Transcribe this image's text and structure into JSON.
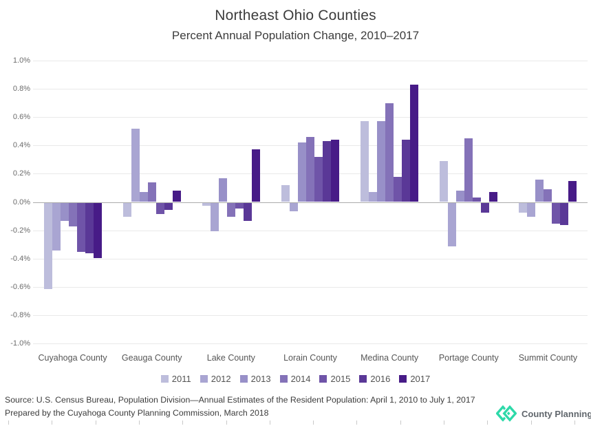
{
  "header": {
    "title": "Northeast Ohio Counties",
    "subtitle": "Percent Annual Population Change, 2010–2017"
  },
  "chart_data": {
    "type": "bar",
    "title": "Northeast Ohio Counties",
    "subtitle": "Percent Annual Population Change, 2010–2017",
    "categories": [
      "Cuyahoga County",
      "Geauga County",
      "Lake County",
      "Lorain County",
      "Medina County",
      "Portage County",
      "Summit County"
    ],
    "series": [
      {
        "name": "2011",
        "color": "#BDBDDC",
        "values": [
          -0.61,
          -0.1,
          -0.02,
          0.12,
          0.57,
          0.29,
          -0.07
        ]
      },
      {
        "name": "2012",
        "color": "#A9A5D2",
        "values": [
          -0.34,
          0.52,
          -0.2,
          -0.06,
          0.07,
          -0.31,
          -0.1
        ]
      },
      {
        "name": "2013",
        "color": "#9890C8",
        "values": [
          -0.13,
          0.07,
          0.17,
          0.42,
          0.57,
          0.08,
          0.16
        ]
      },
      {
        "name": "2014",
        "color": "#8472B8",
        "values": [
          -0.17,
          0.14,
          -0.1,
          0.46,
          0.7,
          0.45,
          0.09
        ]
      },
      {
        "name": "2015",
        "color": "#6F54A8",
        "values": [
          -0.35,
          -0.08,
          -0.04,
          0.32,
          0.18,
          0.03,
          -0.15
        ]
      },
      {
        "name": "2016",
        "color": "#5A3897",
        "values": [
          -0.36,
          -0.05,
          -0.13,
          0.43,
          0.44,
          -0.07,
          -0.16
        ]
      },
      {
        "name": "2017",
        "color": "#471B87",
        "values": [
          -0.39,
          0.08,
          0.37,
          0.44,
          0.83,
          0.07,
          0.15
        ]
      }
    ],
    "ylim": [
      -1.0,
      1.0
    ],
    "ytick_step": 0.2,
    "y_axis_labels": [
      "1.0%",
      "0.8%",
      "0.6%",
      "0.4%",
      "0.2%",
      "0.0%",
      "-0.2%",
      "-0.4%",
      "-0.6%",
      "-0.8%",
      "-1.0%"
    ],
    "ylabel": "",
    "xlabel": "",
    "grid": true,
    "legend_position": "bottom",
    "legend_entries": [
      "2011",
      "2012",
      "2013",
      "2014",
      "2015",
      "2016",
      "2017"
    ],
    "value_unit": "percent"
  },
  "footer": {
    "source_line1": "Source: U.S. Census Bureau, Population Division—Annual Estimates of the Resident Population: April 1, 2010 to July 1, 2017",
    "source_line2": "Prepared by the Cuyahoga County Planning Commission, March 2018",
    "logo_text": "County Planning",
    "logo_color": "#2ED9A9"
  }
}
